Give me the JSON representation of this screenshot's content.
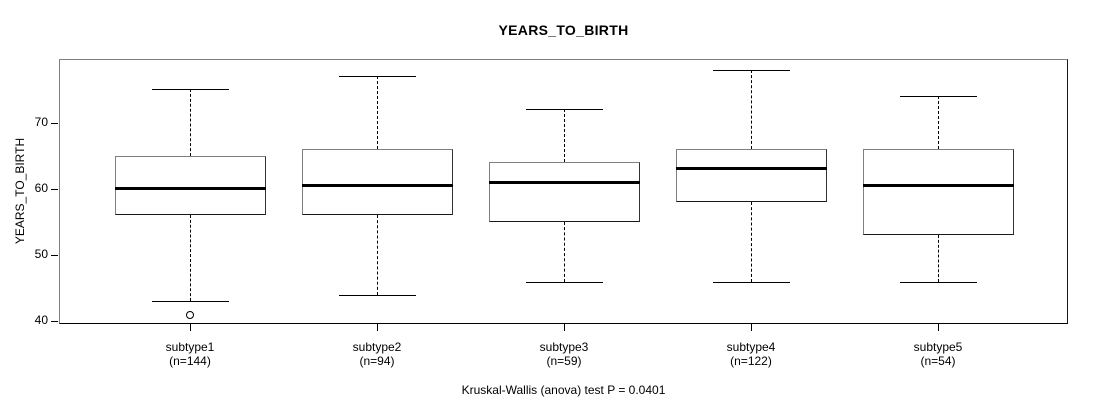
{
  "chart_data": {
    "type": "boxplot",
    "title": "YEARS_TO_BIRTH",
    "ylabel": "YEARS_TO_BIRTH",
    "xlabel": "",
    "annotation": "Kruskal-Wallis (anova) test P = 0.0401",
    "ylim": [
      39.6,
      79.6
    ],
    "yticks": [
      40,
      50,
      60,
      70
    ],
    "grid": false,
    "legend": "none",
    "categories": [
      "subtype1",
      "subtype2",
      "subtype3",
      "subtype4",
      "subtype5"
    ],
    "boxes": [
      {
        "label": "subtype1",
        "n": 144,
        "n_label": "(n=144)",
        "low": 43,
        "q1": 56,
        "median": 60,
        "q3": 65,
        "high": 75,
        "outliers": [
          41
        ]
      },
      {
        "label": "subtype2",
        "n": 94,
        "n_label": "(n=94)",
        "low": 44,
        "q1": 56,
        "median": 60.5,
        "q3": 66,
        "high": 77,
        "outliers": []
      },
      {
        "label": "subtype3",
        "n": 59,
        "n_label": "(n=59)",
        "low": 46,
        "q1": 55,
        "median": 61,
        "q3": 64,
        "high": 72,
        "outliers": []
      },
      {
        "label": "subtype4",
        "n": 122,
        "n_label": "(n=122)",
        "low": 46,
        "q1": 58,
        "median": 63,
        "q3": 66,
        "high": 78,
        "outliers": []
      },
      {
        "label": "subtype5",
        "n": 54,
        "n_label": "(n=54)",
        "low": 46,
        "q1": 53,
        "median": 60.5,
        "q3": 66,
        "high": 74,
        "outliers": []
      }
    ],
    "colors": {
      "background": "#ffffff",
      "box_border": "#808080",
      "line": "#000000",
      "median": "#000000",
      "text": "#000000"
    }
  }
}
